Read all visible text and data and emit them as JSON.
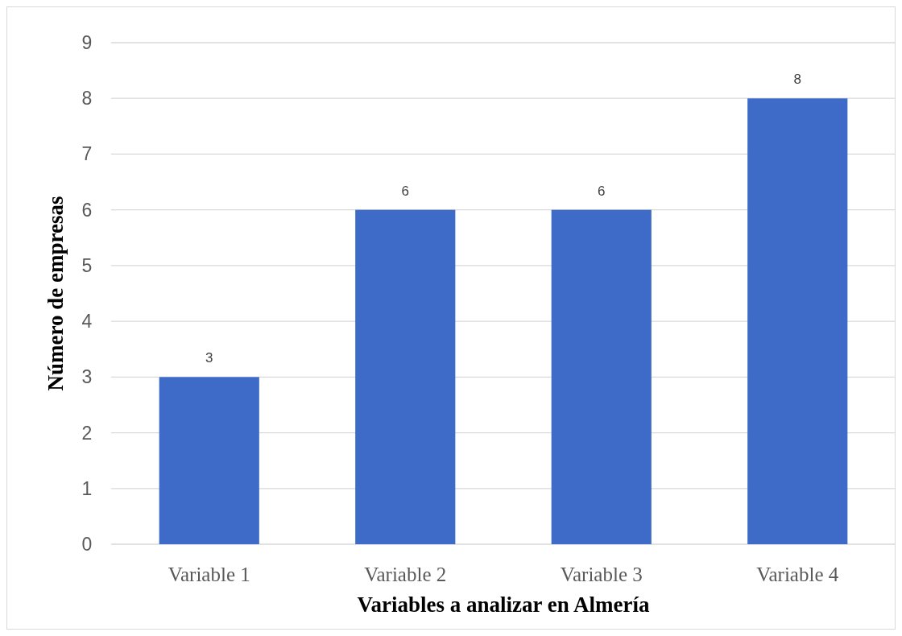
{
  "chart_data": {
    "type": "bar",
    "xlabel": "Variables a analizar en Almería",
    "ylabel": "Número de empresas",
    "categories": [
      "Variable 1",
      "Variable 2",
      "Variable 3",
      "Variable 4"
    ],
    "values": [
      3,
      6,
      6,
      8
    ],
    "color": "#3e6bc7",
    "ylim": [
      0,
      9
    ],
    "yticks": [
      0,
      1,
      2,
      3,
      4,
      5,
      6,
      7,
      8,
      9
    ],
    "grid": "y",
    "data_labels": true
  }
}
